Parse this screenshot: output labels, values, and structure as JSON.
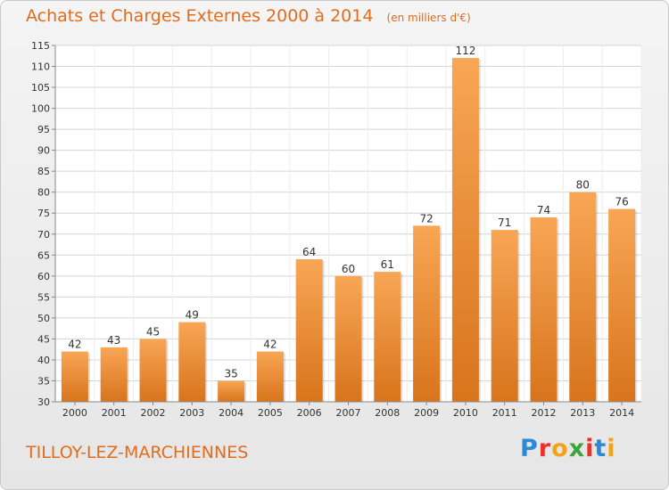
{
  "header": {
    "title": "Achats et Charges Externes 2000 à 2014",
    "unit": "(en milliers d'€)"
  },
  "footer": {
    "commune": "TILLOY-LEZ-MARCHIENNES",
    "logo_text": "Proxiti",
    "logo_colors": [
      "#2a8ad8",
      "#e8342a",
      "#f4a21c",
      "#3aa63a",
      "#e8342a",
      "#2a8ad8",
      "#f4a21c"
    ]
  },
  "colors": {
    "bar_top": "#f8a655",
    "bar_bottom": "#d8741c",
    "text": "#333333",
    "grid": "#d4d4d4",
    "title": "#e06c1e"
  },
  "chart_data": {
    "type": "bar",
    "title": "Achats et Charges Externes 2000 à 2014",
    "xlabel": "",
    "ylabel": "",
    "categories": [
      "2000",
      "2001",
      "2002",
      "2003",
      "2004",
      "2005",
      "2006",
      "2007",
      "2008",
      "2009",
      "2010",
      "2011",
      "2012",
      "2013",
      "2014"
    ],
    "values": [
      42,
      43,
      45,
      49,
      35,
      42,
      64,
      60,
      61,
      72,
      112,
      71,
      74,
      80,
      76
    ],
    "ylim": [
      30,
      115
    ],
    "yticks": [
      30,
      35,
      40,
      45,
      50,
      55,
      60,
      65,
      70,
      75,
      80,
      85,
      90,
      95,
      100,
      105,
      110,
      115
    ],
    "grid": true,
    "data_labels": true
  }
}
